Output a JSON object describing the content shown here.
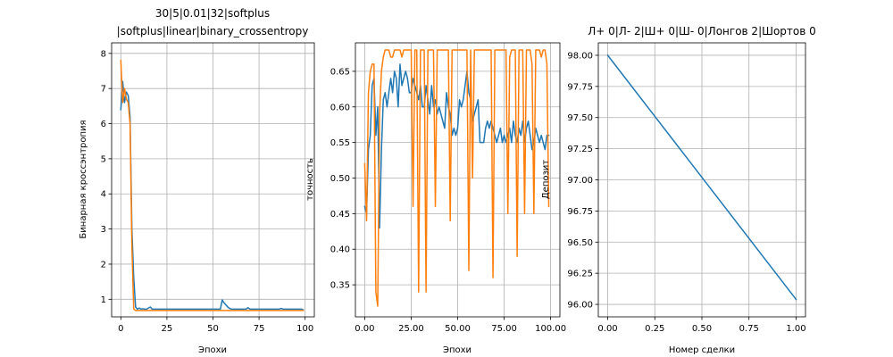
{
  "chart_data": [
    {
      "type": "line",
      "title_lines": [
        "30|5|0.01|32|softplus",
        "|softplus|linear|binary_crossentropy"
      ],
      "xlabel": "Эпохи",
      "ylabel": "Бинарная кроссэнтропия",
      "xlim": [
        -5,
        105
      ],
      "ylim": [
        0.5,
        8.3
      ],
      "xticks": [
        0,
        25,
        50,
        75,
        100
      ],
      "yticks": [
        1,
        2,
        3,
        4,
        5,
        6,
        7,
        8
      ],
      "grid": true,
      "series": [
        {
          "color": "#1f77b4",
          "x": [
            0,
            1,
            2,
            3,
            4,
            5,
            6,
            7,
            8,
            9,
            10,
            11,
            12,
            13,
            14,
            15,
            16,
            17,
            18,
            19,
            20,
            21,
            22,
            23,
            24,
            25,
            26,
            27,
            28,
            29,
            30,
            31,
            32,
            33,
            34,
            35,
            36,
            37,
            38,
            39,
            40,
            41,
            42,
            43,
            44,
            45,
            46,
            47,
            48,
            49,
            50,
            51,
            52,
            53,
            54,
            55,
            56,
            57,
            58,
            59,
            60,
            61,
            62,
            63,
            64,
            65,
            66,
            67,
            68,
            69,
            70,
            71,
            72,
            73,
            74,
            75,
            76,
            77,
            78,
            79,
            80,
            81,
            82,
            83,
            84,
            85,
            86,
            87,
            88,
            89,
            90,
            91,
            92,
            93,
            94,
            95,
            96,
            97,
            98,
            99
          ],
          "y": [
            6.4,
            7.2,
            6.6,
            6.9,
            6.8,
            6.2,
            3.0,
            1.6,
            0.78,
            0.72,
            0.75,
            0.72,
            0.73,
            0.72,
            0.72,
            0.75,
            0.78,
            0.72,
            0.72,
            0.72,
            0.72,
            0.72,
            0.72,
            0.72,
            0.72,
            0.72,
            0.72,
            0.72,
            0.72,
            0.72,
            0.72,
            0.72,
            0.72,
            0.72,
            0.72,
            0.72,
            0.72,
            0.72,
            0.72,
            0.72,
            0.72,
            0.72,
            0.72,
            0.72,
            0.72,
            0.72,
            0.72,
            0.72,
            0.72,
            0.72,
            0.72,
            0.72,
            0.72,
            0.72,
            0.72,
            0.98,
            0.9,
            0.84,
            0.78,
            0.74,
            0.72,
            0.72,
            0.72,
            0.72,
            0.72,
            0.72,
            0.72,
            0.72,
            0.72,
            0.76,
            0.72,
            0.72,
            0.72,
            0.72,
            0.72,
            0.72,
            0.72,
            0.72,
            0.72,
            0.72,
            0.72,
            0.72,
            0.72,
            0.72,
            0.72,
            0.72,
            0.72,
            0.74,
            0.72,
            0.72,
            0.72,
            0.72,
            0.72,
            0.72,
            0.72,
            0.72,
            0.72,
            0.72,
            0.72,
            0.7
          ]
        },
        {
          "color": "#ff7f0e",
          "x": [
            0,
            1,
            2,
            3,
            4,
            5,
            6,
            7,
            8,
            9,
            10,
            11,
            12,
            13,
            14,
            15,
            16,
            17,
            18,
            19,
            20,
            21,
            22,
            23,
            24,
            25,
            26,
            27,
            28,
            29,
            30,
            31,
            32,
            33,
            34,
            35,
            36,
            37,
            38,
            39,
            40,
            41,
            42,
            43,
            44,
            45,
            46,
            47,
            48,
            49,
            50,
            51,
            52,
            53,
            54,
            55,
            56,
            57,
            58,
            59,
            60,
            61,
            62,
            63,
            64,
            65,
            66,
            67,
            68,
            69,
            70,
            71,
            72,
            73,
            74,
            75,
            76,
            77,
            78,
            79,
            80,
            81,
            82,
            83,
            84,
            85,
            86,
            87,
            88,
            89,
            90,
            91,
            92,
            93,
            94,
            95,
            96,
            97,
            98,
            99
          ],
          "y": [
            7.8,
            6.6,
            7.0,
            6.7,
            6.6,
            6.0,
            2.5,
            0.72,
            0.68,
            0.68,
            0.68,
            0.68,
            0.68,
            0.68,
            0.68,
            0.68,
            0.68,
            0.68,
            0.68,
            0.68,
            0.68,
            0.68,
            0.68,
            0.68,
            0.68,
            0.68,
            0.68,
            0.68,
            0.68,
            0.68,
            0.68,
            0.68,
            0.68,
            0.68,
            0.68,
            0.68,
            0.68,
            0.68,
            0.68,
            0.68,
            0.68,
            0.68,
            0.68,
            0.68,
            0.68,
            0.68,
            0.68,
            0.68,
            0.68,
            0.68,
            0.68,
            0.68,
            0.68,
            0.68,
            0.68,
            0.68,
            0.68,
            0.68,
            0.68,
            0.68,
            0.68,
            0.68,
            0.68,
            0.68,
            0.68,
            0.68,
            0.68,
            0.68,
            0.68,
            0.68,
            0.68,
            0.68,
            0.68,
            0.68,
            0.68,
            0.68,
            0.68,
            0.68,
            0.68,
            0.68,
            0.68,
            0.68,
            0.68,
            0.68,
            0.68,
            0.68,
            0.68,
            0.68,
            0.68,
            0.68,
            0.68,
            0.68,
            0.68,
            0.68,
            0.68,
            0.68,
            0.68,
            0.68,
            0.68,
            0.68
          ]
        }
      ]
    },
    {
      "type": "line",
      "title_lines": [],
      "xlabel": "Эпохи",
      "ylabel": "точность",
      "xlim": [
        -5,
        105
      ],
      "ylim": [
        0.305,
        0.69
      ],
      "xticks": [
        0,
        25,
        50,
        75,
        100
      ],
      "yticks": [
        0.35,
        0.4,
        0.45,
        0.5,
        0.55,
        0.6,
        0.65
      ],
      "tick_decimals": 2,
      "grid": true,
      "series": [
        {
          "color": "#1f77b4",
          "x": [
            0,
            1,
            2,
            3,
            4,
            5,
            6,
            7,
            8,
            9,
            10,
            11,
            12,
            13,
            14,
            15,
            16,
            17,
            18,
            19,
            20,
            21,
            22,
            23,
            24,
            25,
            26,
            27,
            28,
            29,
            30,
            31,
            32,
            33,
            34,
            35,
            36,
            37,
            38,
            39,
            40,
            41,
            42,
            43,
            44,
            45,
            46,
            47,
            48,
            49,
            50,
            51,
            52,
            53,
            54,
            55,
            56,
            57,
            58,
            59,
            60,
            61,
            62,
            63,
            64,
            65,
            66,
            67,
            68,
            69,
            70,
            71,
            72,
            73,
            74,
            75,
            76,
            77,
            78,
            79,
            80,
            81,
            82,
            83,
            84,
            85,
            86,
            87,
            88,
            89,
            90,
            91,
            92,
            93,
            94,
            95,
            96,
            97,
            98,
            99
          ],
          "y": [
            0.46,
            0.45,
            0.54,
            0.56,
            0.63,
            0.64,
            0.56,
            0.6,
            0.43,
            0.54,
            0.61,
            0.62,
            0.6,
            0.62,
            0.64,
            0.62,
            0.65,
            0.64,
            0.6,
            0.66,
            0.63,
            0.64,
            0.65,
            0.64,
            0.62,
            0.62,
            0.64,
            0.63,
            0.62,
            0.61,
            0.63,
            0.6,
            0.6,
            0.63,
            0.61,
            0.59,
            0.63,
            0.6,
            0.61,
            0.59,
            0.6,
            0.59,
            0.58,
            0.57,
            0.62,
            0.6,
            0.59,
            0.56,
            0.57,
            0.56,
            0.57,
            0.61,
            0.6,
            0.61,
            0.63,
            0.65,
            0.62,
            0.61,
            0.58,
            0.59,
            0.6,
            0.61,
            0.55,
            0.55,
            0.55,
            0.57,
            0.58,
            0.57,
            0.58,
            0.57,
            0.56,
            0.55,
            0.56,
            0.57,
            0.55,
            0.56,
            0.55,
            0.56,
            0.57,
            0.55,
            0.58,
            0.56,
            0.55,
            0.57,
            0.56,
            0.58,
            0.55,
            0.57,
            0.58,
            0.56,
            0.54,
            0.55,
            0.57,
            0.56,
            0.55,
            0.56,
            0.55,
            0.54,
            0.56,
            0.56
          ]
        },
        {
          "color": "#ff7f0e",
          "x": [
            0,
            1,
            2,
            3,
            4,
            5,
            6,
            7,
            8,
            9,
            10,
            11,
            12,
            13,
            14,
            15,
            16,
            17,
            18,
            19,
            20,
            21,
            22,
            23,
            24,
            25,
            26,
            27,
            28,
            29,
            30,
            31,
            32,
            33,
            34,
            35,
            36,
            37,
            38,
            39,
            40,
            41,
            42,
            43,
            44,
            45,
            46,
            47,
            48,
            49,
            50,
            51,
            52,
            53,
            54,
            55,
            56,
            57,
            58,
            59,
            60,
            61,
            62,
            63,
            64,
            65,
            66,
            67,
            68,
            69,
            70,
            71,
            72,
            73,
            74,
            75,
            76,
            77,
            78,
            79,
            80,
            81,
            82,
            83,
            84,
            85,
            86,
            87,
            88,
            89,
            90,
            91,
            92,
            93,
            94,
            95,
            96,
            97,
            98,
            99
          ],
          "y": [
            0.52,
            0.44,
            0.62,
            0.65,
            0.66,
            0.66,
            0.34,
            0.32,
            0.59,
            0.65,
            0.67,
            0.68,
            0.68,
            0.68,
            0.67,
            0.67,
            0.68,
            0.68,
            0.68,
            0.68,
            0.67,
            0.68,
            0.68,
            0.68,
            0.68,
            0.68,
            0.46,
            0.68,
            0.68,
            0.34,
            0.68,
            0.68,
            0.68,
            0.34,
            0.68,
            0.68,
            0.68,
            0.68,
            0.46,
            0.68,
            0.68,
            0.68,
            0.68,
            0.68,
            0.68,
            0.68,
            0.44,
            0.68,
            0.68,
            0.68,
            0.68,
            0.68,
            0.68,
            0.68,
            0.68,
            0.68,
            0.37,
            0.68,
            0.5,
            0.68,
            0.68,
            0.68,
            0.68,
            0.68,
            0.68,
            0.68,
            0.68,
            0.68,
            0.68,
            0.36,
            0.68,
            0.68,
            0.68,
            0.68,
            0.68,
            0.68,
            0.68,
            0.45,
            0.67,
            0.68,
            0.68,
            0.68,
            0.39,
            0.68,
            0.68,
            0.68,
            0.45,
            0.68,
            0.68,
            0.68,
            0.66,
            0.45,
            0.68,
            0.68,
            0.68,
            0.67,
            0.68,
            0.68,
            0.66,
            0.46
          ]
        }
      ]
    },
    {
      "type": "line",
      "title_lines": [
        "Л+ 0|Л- 2|Ш+ 0|Ш- 0|Лонгов 2|Шортов 0"
      ],
      "xlabel": "Номер сделки",
      "ylabel": "Депозит",
      "xlim": [
        -0.05,
        1.05
      ],
      "ylim": [
        95.9,
        98.1
      ],
      "xticks": [
        0.0,
        0.25,
        0.5,
        0.75,
        1.0
      ],
      "yticks": [
        96.0,
        96.25,
        96.5,
        96.75,
        97.0,
        97.25,
        97.5,
        97.75,
        98.0
      ],
      "tick_decimals": 2,
      "grid": true,
      "series": [
        {
          "color": "#1f77b4",
          "x": [
            0,
            1
          ],
          "y": [
            98.0,
            96.04
          ]
        }
      ]
    }
  ]
}
